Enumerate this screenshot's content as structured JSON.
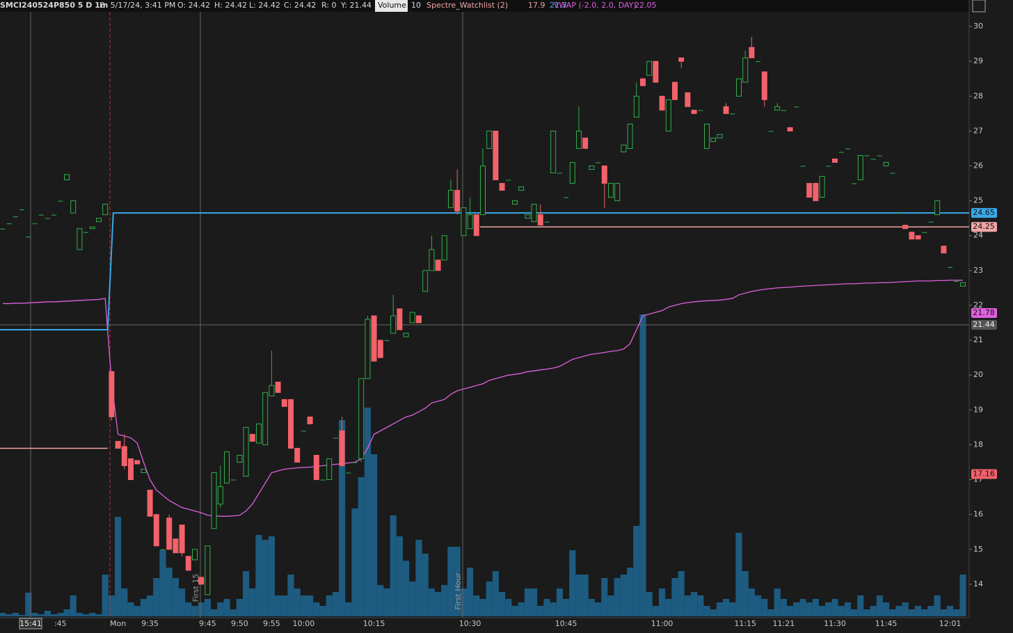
{
  "header": {
    "symbol": "SMCI240524P850 5 D 1m",
    "date": "D: 5/17/24, 3:41 PM",
    "open": "O: 24.42",
    "high": "H: 24.42",
    "low": "L: 24.42",
    "close": "C: 24.42",
    "range": "R: 0",
    "y": "Y: 21.44",
    "volume_label": "Volume",
    "volume": 10,
    "study": "Spectre_Watchlist (2)",
    "vwap_label": "VWAP (-2.0, 2.0, DAY)",
    "vwap": 22.05
  },
  "chart_data": {
    "type": "candlestick",
    "categories": [
      null,
      null,
      null,
      null,
      null,
      null,
      null,
      null,
      null,
      ":45",
      null,
      null,
      null,
      null,
      null,
      null,
      null,
      null,
      "Mon",
      null,
      null,
      null,
      null,
      "9:35",
      null,
      null,
      null,
      null,
      null,
      null,
      null,
      null,
      "9:45",
      null,
      null,
      null,
      null,
      "9:50",
      null,
      null,
      null,
      null,
      "9:55",
      null,
      null,
      null,
      null,
      "10:00",
      null,
      null,
      null,
      null,
      null,
      null,
      null,
      null,
      null,
      null,
      "10:15",
      null,
      null,
      null,
      null,
      null,
      null,
      null,
      null,
      null,
      null,
      null,
      null,
      null,
      null,
      "10:30",
      null,
      null,
      null,
      null,
      null,
      null,
      null,
      null,
      null,
      null,
      null,
      null,
      null,
      null,
      "10:45",
      null,
      null,
      null,
      null,
      null,
      null,
      null,
      null,
      null,
      null,
      null,
      null,
      null,
      null,
      "11:00",
      null,
      null,
      null,
      null,
      null,
      null,
      null,
      null,
      null,
      null,
      null,
      null,
      "11:15",
      null,
      null,
      null,
      null,
      null,
      "11:21",
      null,
      null,
      null,
      null,
      null,
      null,
      null,
      "11:30",
      null,
      null,
      null,
      null,
      null,
      null,
      null,
      "11:45",
      null,
      null,
      null,
      null,
      null,
      null,
      null,
      null,
      null,
      "12:01",
      null,
      null
    ],
    "ohlc": [
      [
        24.2,
        24.2,
        24.2,
        24.2
      ],
      [
        24.35,
        24.35,
        24.35,
        24.35
      ],
      [
        24.55,
        24.55,
        24.55,
        24.55
      ],
      [
        24.75,
        24.75,
        24.75,
        24.75
      ],
      [
        23.97,
        23.97,
        23.97,
        23.97
      ],
      [
        24.35,
        24.35,
        24.35,
        24.35
      ],
      [
        24.6,
        24.6,
        24.6,
        24.6
      ],
      [
        24.5,
        24.5,
        24.5,
        24.5
      ],
      [
        24.6,
        24.6,
        24.6,
        24.6
      ],
      [
        25.0,
        25.0,
        25.0,
        25.0
      ],
      [
        25.6,
        25.75,
        25.6,
        25.75
      ],
      [
        24.65,
        25.0,
        24.65,
        25.0
      ],
      [
        23.6,
        24.2,
        23.6,
        24.2
      ],
      [
        24.1,
        24.1,
        24.1,
        24.1
      ],
      [
        24.2,
        24.25,
        24.2,
        24.25
      ],
      [
        24.4,
        24.5,
        24.4,
        24.5
      ],
      [
        24.6,
        24.9,
        24.6,
        24.9
      ],
      [
        20.1,
        20.1,
        18.7,
        18.8
      ],
      [
        18.1,
        18.1,
        17.9,
        17.9
      ],
      [
        17.95,
        18.3,
        17.3,
        17.4
      ],
      [
        17.6,
        17.6,
        17.0,
        17.0
      ],
      [
        17.55,
        17.55,
        17.45,
        17.45
      ],
      [
        17.2,
        17.3,
        17.2,
        17.3
      ],
      [
        16.7,
        16.7,
        15.95,
        15.95
      ],
      [
        16.0,
        16.0,
        15.1,
        15.1
      ],
      [
        15.0,
        15.0,
        15.0,
        15.0
      ],
      [
        15.9,
        16.0,
        15.0,
        15.0
      ],
      [
        15.3,
        15.3,
        14.9,
        14.9
      ],
      [
        15.7,
        15.7,
        14.8,
        14.9
      ],
      [
        14.8,
        14.8,
        14.4,
        14.4
      ],
      [
        14.7,
        15.0,
        14.7,
        15.0
      ],
      [
        14.2,
        14.2,
        14.0,
        14.0
      ],
      [
        13.7,
        15.1,
        13.7,
        15.1
      ],
      [
        15.6,
        17.2,
        15.6,
        17.2
      ],
      [
        16.3,
        17.4,
        16.2,
        16.8
      ],
      [
        16.9,
        17.8,
        16.9,
        17.8
      ],
      [
        17.0,
        17.0,
        17.0,
        17.0
      ],
      [
        17.5,
        17.7,
        17.5,
        17.7
      ],
      [
        17.1,
        18.5,
        17.1,
        18.5
      ],
      [
        18.3,
        18.3,
        18.1,
        18.1
      ],
      [
        18.05,
        18.6,
        18.05,
        18.6
      ],
      [
        18.0,
        19.5,
        18.0,
        19.5
      ],
      [
        19.4,
        20.7,
        19.4,
        19.7
      ],
      [
        19.8,
        19.8,
        19.5,
        19.5
      ],
      [
        19.3,
        19.3,
        19.1,
        19.1
      ],
      [
        19.3,
        19.3,
        17.9,
        17.9
      ],
      [
        17.9,
        17.9,
        17.5,
        17.5
      ],
      [
        18.4,
        18.4,
        18.4,
        18.4
      ],
      [
        18.8,
        18.8,
        18.6,
        18.6
      ],
      [
        17.7,
        17.7,
        17.0,
        17.0
      ],
      [
        17.0,
        17.0,
        17.0,
        17.0
      ],
      [
        17.0,
        17.6,
        17.0,
        17.6
      ],
      [
        18.2,
        18.2,
        18.2,
        18.2
      ],
      [
        18.4,
        18.8,
        17.4,
        17.4
      ],
      [
        17.2,
        17.2,
        17.2,
        17.2
      ],
      [
        17.5,
        17.5,
        17.5,
        17.5
      ],
      [
        17.6,
        19.9,
        17.5,
        19.9
      ],
      [
        19.9,
        21.7,
        19.9,
        21.6
      ],
      [
        21.7,
        21.7,
        20.4,
        20.4
      ],
      [
        21.0,
        21.0,
        20.5,
        20.5
      ],
      [
        21.0,
        21.0,
        21.0,
        21.0
      ],
      [
        21.2,
        22.3,
        21.2,
        21.7
      ],
      [
        21.9,
        21.9,
        21.3,
        21.3
      ],
      [
        21.1,
        21.2,
        21.1,
        21.2
      ],
      [
        21.5,
        21.8,
        21.5,
        21.8
      ],
      [
        21.7,
        21.7,
        21.5,
        21.5
      ],
      [
        22.4,
        23.0,
        22.4,
        23.0
      ],
      [
        23.0,
        24.0,
        23.0,
        23.6
      ],
      [
        23.3,
        23.3,
        23.0,
        23.0
      ],
      [
        23.3,
        24.0,
        23.3,
        24.0
      ],
      [
        24.8,
        25.6,
        24.8,
        25.3
      ],
      [
        25.3,
        25.9,
        24.6,
        24.7
      ],
      [
        24.0,
        24.8,
        24.0,
        24.8
      ],
      [
        24.2,
        25.1,
        24.2,
        24.6
      ],
      [
        24.6,
        24.6,
        24.0,
        24.0
      ],
      [
        24.6,
        26.5,
        24.6,
        26.0
      ],
      [
        26.5,
        27.0,
        26.5,
        27.0
      ],
      [
        27.0,
        27.0,
        25.6,
        25.6
      ],
      [
        25.5,
        25.5,
        25.3,
        25.3
      ],
      [
        25.6,
        25.6,
        25.6,
        25.6
      ],
      [
        24.9,
        25.0,
        24.9,
        25.0
      ],
      [
        25.3,
        25.4,
        25.3,
        25.4
      ],
      [
        24.5,
        24.6,
        24.5,
        24.6
      ],
      [
        24.4,
        24.9,
        24.4,
        24.9
      ],
      [
        24.6,
        24.9,
        24.3,
        24.3
      ],
      [
        24.4,
        24.4,
        24.4,
        24.4
      ],
      [
        25.8,
        27.0,
        25.8,
        27.0
      ],
      [
        25.8,
        25.8,
        25.8,
        25.8
      ],
      [
        25.1,
        25.1,
        25.1,
        25.1
      ],
      [
        25.5,
        26.1,
        25.5,
        26.1
      ],
      [
        26.5,
        27.7,
        26.5,
        27.0
      ],
      [
        26.8,
        26.8,
        26.5,
        26.5
      ],
      [
        25.9,
        26.0,
        25.9,
        26.0
      ],
      [
        26.1,
        26.1,
        26.1,
        26.1
      ],
      [
        26.0,
        26.0,
        24.8,
        25.5
      ],
      [
        25.1,
        25.5,
        25.1,
        25.5
      ],
      [
        25.0,
        25.5,
        25.0,
        25.5
      ],
      [
        26.4,
        26.6,
        26.4,
        26.6
      ],
      [
        26.5,
        27.2,
        26.5,
        27.2
      ],
      [
        27.4,
        28.4,
        27.4,
        28.0
      ],
      [
        28.5,
        28.5,
        28.3,
        28.3
      ],
      [
        28.6,
        29.0,
        28.6,
        29.0
      ],
      [
        29.0,
        29.0,
        28.4,
        28.4
      ],
      [
        28.0,
        28.0,
        27.6,
        27.6
      ],
      [
        27.0,
        27.9,
        27.0,
        27.9
      ],
      [
        28.4,
        28.4,
        27.9,
        27.9
      ],
      [
        29.1,
        29.1,
        28.8,
        29.0
      ],
      [
        28.1,
        28.1,
        27.7,
        27.7
      ],
      [
        27.6,
        27.6,
        27.5,
        27.5
      ],
      [
        27.6,
        27.6,
        27.6,
        27.6
      ],
      [
        26.5,
        27.2,
        26.5,
        27.2
      ],
      [
        26.7,
        26.8,
        26.7,
        26.8
      ],
      [
        26.8,
        26.9,
        26.8,
        26.9
      ],
      [
        27.7,
        27.8,
        27.5,
        27.5
      ],
      [
        27.5,
        27.5,
        27.5,
        27.5
      ],
      [
        28.0,
        28.5,
        28.0,
        28.5
      ],
      [
        28.4,
        29.3,
        28.4,
        29.1
      ],
      [
        29.4,
        29.7,
        29.1,
        29.1
      ],
      [
        29.0,
        29.0,
        29.0,
        29.0
      ],
      [
        28.7,
        28.7,
        27.7,
        27.9
      ],
      [
        27.0,
        27.0,
        27.0,
        27.0
      ],
      [
        27.6,
        27.8,
        27.6,
        27.7
      ],
      [
        27.6,
        27.6,
        27.6,
        27.6
      ],
      [
        27.1,
        27.1,
        27.0,
        27.0
      ],
      [
        27.7,
        27.7,
        27.7,
        27.7
      ],
      [
        26.0,
        26.0,
        26.0,
        26.0
      ],
      [
        25.5,
        25.5,
        25.1,
        25.1
      ],
      [
        25.5,
        25.5,
        25.0,
        25.0
      ],
      [
        25.1,
        25.7,
        25.1,
        25.7
      ],
      [
        26.0,
        26.0,
        26.0,
        26.0
      ],
      [
        26.2,
        26.2,
        26.1,
        26.1
      ],
      [
        26.4,
        26.4,
        26.4,
        26.4
      ],
      [
        26.5,
        26.5,
        26.5,
        26.5
      ],
      [
        25.5,
        25.5,
        25.5,
        25.5
      ],
      [
        25.6,
        26.3,
        25.6,
        26.3
      ],
      [
        26.3,
        26.3,
        26.3,
        26.3
      ],
      [
        26.2,
        26.2,
        26.2,
        26.2
      ],
      [
        26.3,
        26.3,
        26.3,
        26.3
      ],
      [
        26.0,
        26.1,
        26.0,
        26.1
      ],
      [
        25.8,
        25.8,
        25.8,
        25.8
      ],
      [
        24.65,
        24.65,
        24.65,
        24.65
      ],
      [
        24.3,
        24.3,
        24.2,
        24.2
      ],
      [
        24.1,
        24.1,
        23.9,
        23.9
      ],
      [
        24.0,
        24.0,
        23.9,
        23.9
      ],
      [
        24.1,
        24.1,
        24.1,
        24.1
      ],
      [
        24.4,
        24.4,
        24.4,
        24.4
      ],
      [
        24.6,
        25.0,
        24.6,
        25.0
      ],
      [
        23.7,
        23.7,
        23.5,
        23.5
      ],
      [
        23.1,
        23.1,
        23.1,
        23.1
      ],
      [
        22.7,
        22.7,
        22.7,
        22.7
      ],
      [
        22.55,
        22.65,
        22.55,
        22.65
      ]
    ],
    "up_color": "#2fb24a",
    "down_color": "#f2626a",
    "volume": {
      "color": "#1d5b80",
      "lim": [
        0,
        440
      ],
      "values": [
        5,
        3,
        5,
        2,
        34,
        5,
        3,
        8,
        3,
        5,
        10,
        30,
        5,
        3,
        5,
        3,
        60,
        30,
        143,
        40,
        20,
        15,
        25,
        30,
        55,
        95,
        70,
        55,
        40,
        20,
        15,
        20,
        25,
        10,
        20,
        25,
        10,
        25,
        65,
        40,
        117,
        110,
        115,
        30,
        30,
        60,
        40,
        30,
        30,
        20,
        15,
        30,
        35,
        282,
        20,
        155,
        200,
        300,
        233,
        45,
        40,
        145,
        115,
        80,
        50,
        110,
        90,
        40,
        35,
        45,
        100,
        100,
        40,
        70,
        30,
        25,
        50,
        65,
        35,
        25,
        15,
        20,
        40,
        40,
        15,
        25,
        20,
        40,
        25,
        95,
        60,
        60,
        25,
        20,
        55,
        30,
        55,
        60,
        70,
        130,
        434,
        35,
        15,
        40,
        25,
        55,
        65,
        30,
        35,
        30,
        15,
        10,
        20,
        25,
        20,
        120,
        65,
        40,
        30,
        25,
        10,
        40,
        25,
        15,
        20,
        25,
        20,
        25,
        15,
        20,
        25,
        15,
        20,
        10,
        30,
        10,
        15,
        30,
        20,
        10,
        15,
        20,
        10,
        15,
        10,
        15,
        30,
        10,
        15,
        10,
        60
      ]
    },
    "vwap": {
      "color": "#e060e0",
      "values": [
        22.05,
        22.05,
        22.06,
        22.06,
        22.07,
        22.08,
        22.09,
        22.1,
        22.1,
        22.11,
        22.12,
        22.13,
        22.14,
        22.15,
        22.16,
        22.17,
        22.2,
        19.8,
        18.3,
        18.25,
        18.2,
        18.05,
        17.5,
        17.0,
        16.7,
        16.55,
        16.4,
        16.3,
        16.2,
        16.15,
        16.1,
        16.05,
        15.98,
        15.96,
        15.95,
        15.95,
        15.96,
        15.98,
        16.1,
        16.3,
        16.6,
        16.9,
        17.2,
        17.25,
        17.3,
        17.32,
        17.34,
        17.35,
        17.36,
        17.38,
        17.4,
        17.42,
        17.44,
        17.46,
        17.48,
        17.5,
        17.6,
        17.9,
        18.3,
        18.4,
        18.5,
        18.6,
        18.7,
        18.8,
        18.85,
        18.95,
        19.05,
        19.2,
        19.25,
        19.3,
        19.45,
        19.55,
        19.6,
        19.65,
        19.7,
        19.75,
        19.85,
        19.9,
        19.95,
        20.0,
        20.02,
        20.05,
        20.1,
        20.12,
        20.15,
        20.17,
        20.2,
        20.25,
        20.35,
        20.45,
        20.5,
        20.55,
        20.6,
        20.62,
        20.65,
        20.68,
        20.7,
        20.75,
        20.9,
        21.3,
        21.7,
        21.75,
        21.8,
        21.85,
        21.95,
        22.0,
        22.05,
        22.08,
        22.1,
        22.12,
        22.13,
        22.14,
        22.15,
        22.17,
        22.2,
        22.3,
        22.35,
        22.4,
        22.43,
        22.46,
        22.48,
        22.5,
        22.51,
        22.52,
        22.54,
        22.55,
        22.56,
        22.57,
        22.58,
        22.59,
        22.6,
        22.61,
        22.62,
        22.62,
        22.63,
        22.64,
        22.64,
        22.65,
        22.65,
        22.66,
        22.67,
        22.68,
        22.69,
        22.7,
        22.7,
        22.7,
        22.71,
        22.71,
        22.72,
        22.72,
        22.72
      ]
    },
    "watchlist": {
      "upper": [
        21.3,
        24.65
      ],
      "lower": [
        17.9,
        24.25
      ],
      "upper_color": "#3aa8e8",
      "lower_color": "#f2a5a5"
    },
    "ylim": [
      13.04,
      30.4
    ],
    "yticks": [
      14,
      15,
      16,
      17,
      18,
      19,
      20,
      21,
      22,
      23,
      24,
      25,
      26,
      27,
      28,
      29,
      30
    ],
    "price_badges": [
      {
        "value": 21.78,
        "color": "#e060e0"
      },
      {
        "value": 17.16,
        "color": "#f2626a"
      }
    ],
    "cursor": {
      "time": "15:41",
      "price": 21.44
    },
    "annotations": [
      "First 15",
      "First Hour"
    ]
  }
}
